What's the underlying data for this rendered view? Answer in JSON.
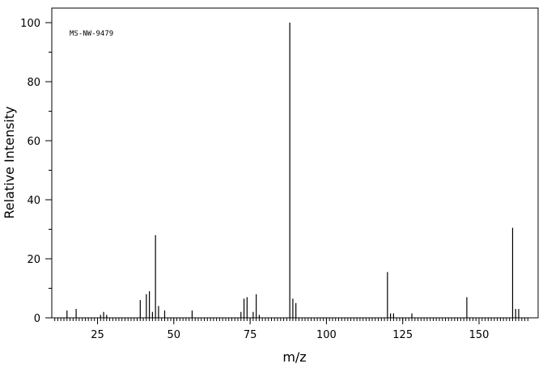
{
  "chart_data": {
    "type": "bar",
    "title": "",
    "annotation": "MS-NW-9479",
    "xlabel": "m/z",
    "ylabel": "Relative Intensity",
    "xlim": [
      10,
      166
    ],
    "ylim": [
      0,
      104
    ],
    "x_ticks": [
      25,
      50,
      75,
      100,
      125,
      150
    ],
    "y_ticks": [
      0,
      20,
      40,
      60,
      80,
      100
    ],
    "grid": false,
    "legend": "none",
    "colors": {
      "bars": "#000000",
      "axes": "#000000",
      "background": "#ffffff"
    },
    "peaks": [
      {
        "mz": 15,
        "intensity": 2.5
      },
      {
        "mz": 18,
        "intensity": 3.0
      },
      {
        "mz": 26,
        "intensity": 1.0
      },
      {
        "mz": 27,
        "intensity": 2.0
      },
      {
        "mz": 28,
        "intensity": 1.0
      },
      {
        "mz": 39,
        "intensity": 6.0
      },
      {
        "mz": 41,
        "intensity": 8.0
      },
      {
        "mz": 42,
        "intensity": 9.0
      },
      {
        "mz": 43,
        "intensity": 2.0
      },
      {
        "mz": 44,
        "intensity": 28.0
      },
      {
        "mz": 45,
        "intensity": 4.0
      },
      {
        "mz": 47,
        "intensity": 2.5
      },
      {
        "mz": 56,
        "intensity": 2.5
      },
      {
        "mz": 72,
        "intensity": 2.0
      },
      {
        "mz": 73,
        "intensity": 6.5
      },
      {
        "mz": 74,
        "intensity": 7.0
      },
      {
        "mz": 76,
        "intensity": 2.0
      },
      {
        "mz": 77,
        "intensity": 8.0
      },
      {
        "mz": 78,
        "intensity": 1.0
      },
      {
        "mz": 88,
        "intensity": 100.0
      },
      {
        "mz": 89,
        "intensity": 6.5
      },
      {
        "mz": 90,
        "intensity": 5.0
      },
      {
        "mz": 120,
        "intensity": 15.5
      },
      {
        "mz": 121,
        "intensity": 1.5
      },
      {
        "mz": 122,
        "intensity": 1.5
      },
      {
        "mz": 128,
        "intensity": 1.5
      },
      {
        "mz": 146,
        "intensity": 7.0
      },
      {
        "mz": 161,
        "intensity": 30.5
      },
      {
        "mz": 162,
        "intensity": 3.0
      },
      {
        "mz": 163,
        "intensity": 3.0
      }
    ]
  }
}
